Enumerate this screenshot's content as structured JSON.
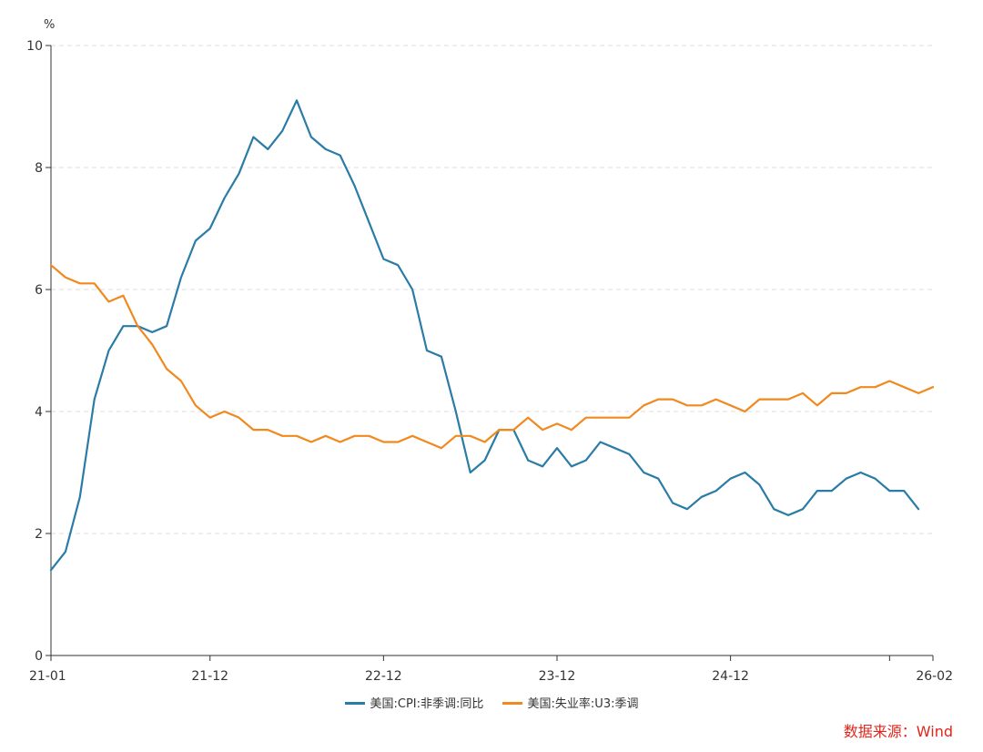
{
  "chart_data": {
    "type": "line",
    "y_unit": "%",
    "ylim": [
      0,
      10
    ],
    "y_ticks": [
      "0",
      "2",
      "4",
      "6",
      "8",
      "10"
    ],
    "x_ticks": [
      "21-01",
      "21-12",
      "22-12",
      "23-12",
      "24-12",
      "26-02"
    ],
    "grid": "horizontal dashed",
    "legend_position": "bottom",
    "series": [
      {
        "name": "美国:CPI:非季调:同比",
        "color": "#2a7ca6",
        "values": [
          1.4,
          1.7,
          2.6,
          4.2,
          5.0,
          5.4,
          5.4,
          5.3,
          5.4,
          6.2,
          6.8,
          7.0,
          7.5,
          7.9,
          8.5,
          8.3,
          8.6,
          9.1,
          8.5,
          8.3,
          8.2,
          7.7,
          7.1,
          6.5,
          6.4,
          6.0,
          5.0,
          4.9,
          4.0,
          3.0,
          3.2,
          3.7,
          3.7,
          3.2,
          3.1,
          3.4,
          3.1,
          3.2,
          3.5,
          3.4,
          3.3,
          3.0,
          2.9,
          2.5,
          2.4,
          2.6,
          2.7,
          2.9,
          3.0,
          2.8,
          2.4,
          2.3,
          2.4,
          2.7,
          2.7,
          2.9,
          3.0,
          2.9,
          2.7,
          2.7,
          2.4
        ]
      },
      {
        "name": "美国:失业率:U3:季调",
        "color": "#f0891e",
        "values": [
          6.4,
          6.2,
          6.1,
          6.1,
          5.8,
          5.9,
          5.4,
          5.1,
          4.7,
          4.5,
          4.1,
          3.9,
          4.0,
          3.9,
          3.7,
          3.7,
          3.6,
          3.6,
          3.5,
          3.6,
          3.5,
          3.6,
          3.6,
          3.5,
          3.5,
          3.6,
          3.5,
          3.4,
          3.6,
          3.6,
          3.5,
          3.7,
          3.7,
          3.9,
          3.7,
          3.8,
          3.7,
          3.9,
          3.9,
          3.9,
          3.9,
          4.1,
          4.2,
          4.2,
          4.1,
          4.1,
          4.2,
          4.1,
          4.0,
          4.2,
          4.2,
          4.2,
          4.3,
          4.1,
          4.3,
          4.3,
          4.4,
          4.4,
          4.5,
          4.4,
          4.3,
          4.4
        ]
      }
    ]
  },
  "source_text": "数据来源：Wind"
}
